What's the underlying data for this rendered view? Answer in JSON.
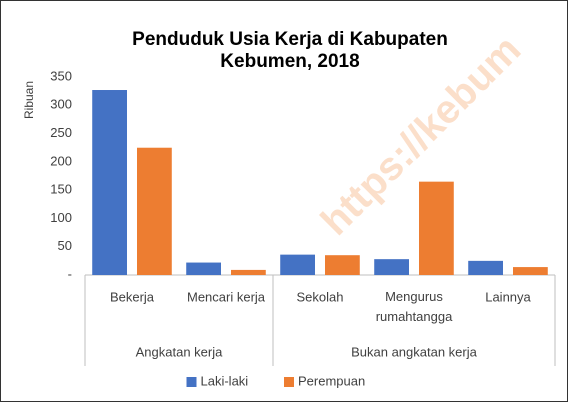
{
  "chart_data": {
    "type": "bar",
    "title": [
      "Penduduk Usia Kerja di Kabupaten",
      "Kebumen, 2018"
    ],
    "y_label": "Ribuan",
    "watermark": "https://kebum",
    "categories": [
      "Bekerja",
      "Mencari kerja",
      "Sekolah",
      "Mengurus rumahtangga",
      "Lainnya"
    ],
    "parent_categories": [
      "Angkatan kerja",
      "Angkatan kerja",
      "Bukan angkatan kerja",
      "Bukan angkatan kerja",
      "Bukan angkatan kerja"
    ],
    "series": [
      {
        "name": "Laki-laki",
        "color": "#4472c4",
        "values": [
          327,
          22,
          36,
          28,
          25
        ]
      },
      {
        "name": "Perempuan",
        "color": "#ed7d31",
        "values": [
          225,
          9,
          35,
          165,
          14
        ]
      }
    ],
    "ylim": [
      0,
      350
    ],
    "yticks": [
      {
        "value": 0,
        "label": "-"
      },
      50,
      100,
      150,
      200,
      250,
      300,
      350
    ],
    "legend": "bottom"
  }
}
